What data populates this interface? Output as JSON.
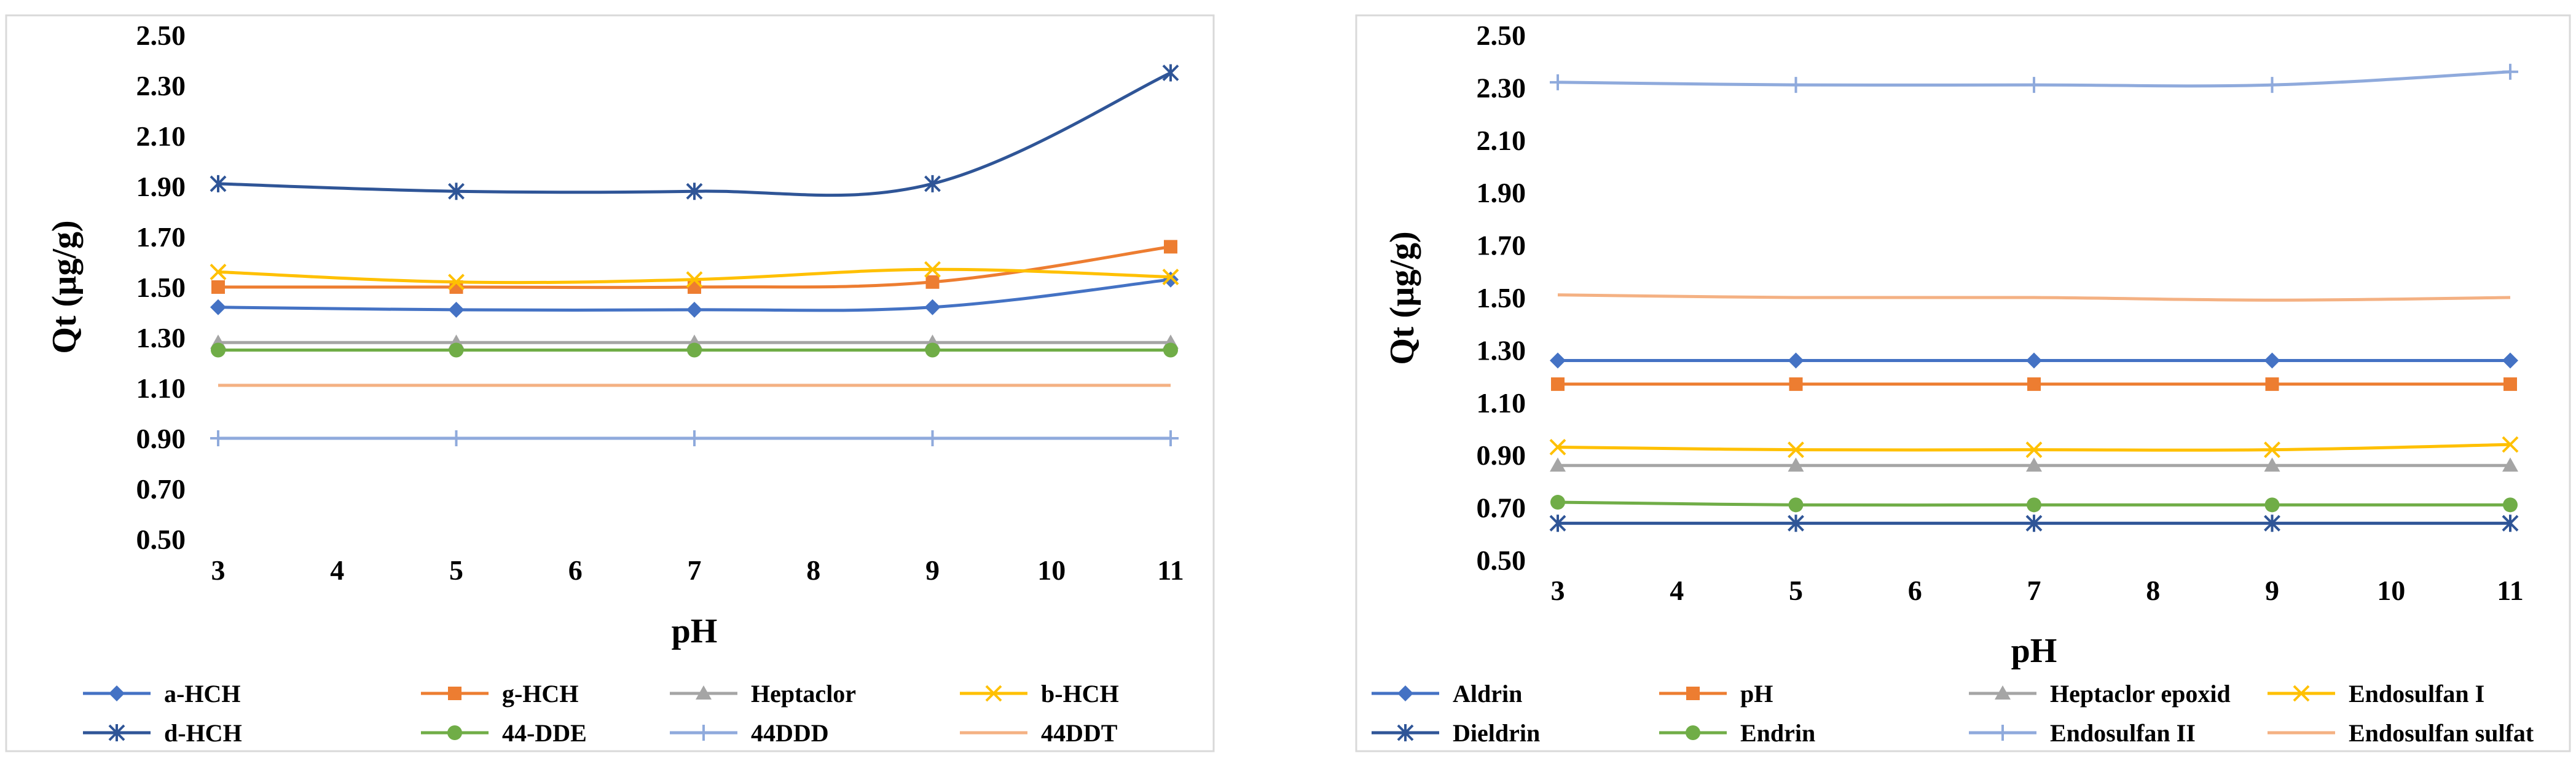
{
  "chart_data": [
    {
      "type": "line",
      "title": "",
      "xlabel": "pH",
      "ylabel": "Qt (µg/g)",
      "xlim": [
        3,
        11
      ],
      "x_ticks": [
        "3",
        "4",
        "5",
        "6",
        "7",
        "8",
        "9",
        "10",
        "11"
      ],
      "ylim": [
        0.5,
        2.5
      ],
      "y_ticks": [
        "0.50",
        "0.70",
        "0.90",
        "1.10",
        "1.30",
        "1.50",
        "1.70",
        "1.90",
        "2.10",
        "2.30",
        "2.50"
      ],
      "grid": false,
      "legend_position": "bottom",
      "x": [
        3,
        5,
        7,
        9,
        11
      ],
      "series": [
        {
          "name": "a-HCH",
          "color": "#4472C4",
          "marker": "diamond",
          "values": [
            1.42,
            1.41,
            1.41,
            1.42,
            1.53
          ]
        },
        {
          "name": "g-HCH",
          "color": "#ED7D31",
          "marker": "square",
          "values": [
            1.5,
            1.5,
            1.5,
            1.52,
            1.66
          ]
        },
        {
          "name": "Heptaclor",
          "color": "#A5A5A5",
          "marker": "triangle",
          "values": [
            1.28,
            1.28,
            1.28,
            1.28,
            1.28
          ]
        },
        {
          "name": "b-HCH",
          "color": "#FFC000",
          "marker": "x",
          "values": [
            1.56,
            1.52,
            1.53,
            1.57,
            1.54
          ]
        },
        {
          "name": "d-HCH",
          "color": "#2F5597",
          "marker": "star",
          "values": [
            1.91,
            1.88,
            1.88,
            1.91,
            2.35
          ]
        },
        {
          "name": "44-DDE",
          "color": "#70AD47",
          "marker": "circle",
          "values": [
            1.25,
            1.25,
            1.25,
            1.25,
            1.25
          ]
        },
        {
          "name": "44DDD",
          "color": "#8FAADC",
          "marker": "plus",
          "values": [
            0.9,
            0.9,
            0.9,
            0.9,
            0.9
          ]
        },
        {
          "name": "44DDT",
          "color": "#F4B183",
          "marker": "none",
          "values": [
            1.11,
            1.11,
            1.11,
            1.11,
            1.11
          ]
        }
      ]
    },
    {
      "type": "line",
      "title": "",
      "xlabel": "pH",
      "ylabel": "Qt (µg/g)",
      "xlim": [
        3,
        11
      ],
      "x_ticks": [
        "3",
        "4",
        "5",
        "6",
        "7",
        "8",
        "9",
        "10",
        "11"
      ],
      "ylim": [
        0.5,
        2.5
      ],
      "y_ticks": [
        "0.50",
        "0.70",
        "0.90",
        "1.10",
        "1.30",
        "1.50",
        "1.70",
        "1.90",
        "2.10",
        "2.30",
        "2.50"
      ],
      "grid": false,
      "legend_position": "bottom",
      "x": [
        3,
        5,
        7,
        9,
        11
      ],
      "series": [
        {
          "name": "Aldrin",
          "color": "#4472C4",
          "marker": "diamond",
          "values": [
            1.26,
            1.26,
            1.26,
            1.26,
            1.26
          ]
        },
        {
          "name": "pH",
          "color": "#ED7D31",
          "marker": "square",
          "values": [
            1.17,
            1.17,
            1.17,
            1.17,
            1.17
          ]
        },
        {
          "name": "Heptaclor epoxid",
          "color": "#A5A5A5",
          "marker": "triangle",
          "values": [
            0.86,
            0.86,
            0.86,
            0.86,
            0.86
          ]
        },
        {
          "name": "Endosulfan I",
          "color": "#FFC000",
          "marker": "x",
          "values": [
            0.93,
            0.92,
            0.92,
            0.92,
            0.94
          ]
        },
        {
          "name": "Dieldrin",
          "color": "#2F5597",
          "marker": "star",
          "values": [
            0.64,
            0.64,
            0.64,
            0.64,
            0.64
          ]
        },
        {
          "name": "Endrin",
          "color": "#70AD47",
          "marker": "circle",
          "values": [
            0.72,
            0.71,
            0.71,
            0.71,
            0.71
          ]
        },
        {
          "name": "Endosulfan II",
          "color": "#8FAADC",
          "marker": "plus",
          "values": [
            2.32,
            2.31,
            2.31,
            2.31,
            2.36
          ]
        },
        {
          "name": "Endosulfan sulfat",
          "color": "#F4B183",
          "marker": "none",
          "values": [
            1.51,
            1.5,
            1.5,
            1.49,
            1.5
          ]
        }
      ]
    }
  ]
}
